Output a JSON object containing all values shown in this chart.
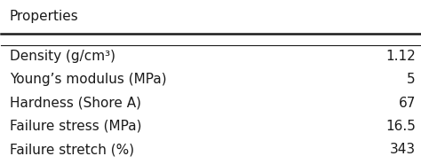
{
  "header_left": "Properties",
  "rows": [
    [
      "Density (g/cm³)",
      "1.12"
    ],
    [
      "Young’s modulus (MPa)",
      "5"
    ],
    [
      "Hardness (Shore A)",
      "67"
    ],
    [
      "Failure stress (MPa)",
      "16.5"
    ],
    [
      "Failure stretch (%)",
      "343"
    ]
  ],
  "background_color": "#ffffff",
  "text_color": "#1a1a1a",
  "header_fontsize": 11,
  "row_fontsize": 11,
  "fig_width": 4.74,
  "fig_height": 1.85
}
